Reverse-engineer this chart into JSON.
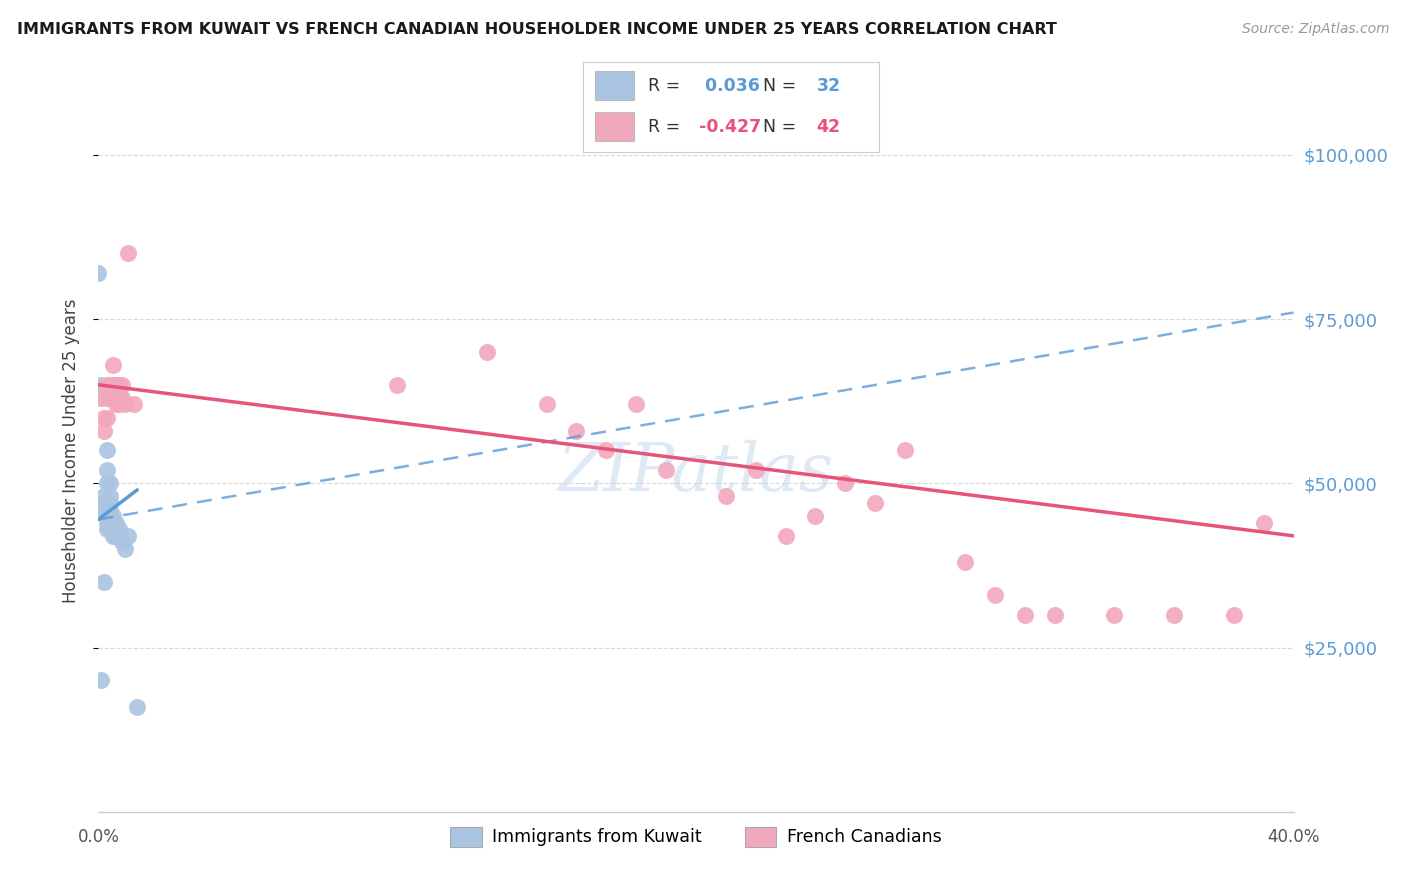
{
  "title": "IMMIGRANTS FROM KUWAIT VS FRENCH CANADIAN HOUSEHOLDER INCOME UNDER 25 YEARS CORRELATION CHART",
  "source": "Source: ZipAtlas.com",
  "ylabel": "Householder Income Under 25 years",
  "xlim": [
    0.0,
    0.4
  ],
  "ylim": [
    0,
    110000
  ],
  "yticks": [
    25000,
    50000,
    75000,
    100000
  ],
  "ytick_labels": [
    "$25,000",
    "$50,000",
    "$75,000",
    "$100,000"
  ],
  "r_kuwait": 0.036,
  "n_kuwait": 32,
  "r_french": -0.427,
  "n_french": 42,
  "legend_label_kuwait": "Immigrants from Kuwait",
  "legend_label_french": "French Canadians",
  "color_kuwait": "#aac4e2",
  "color_french": "#f2a8bc",
  "trendline_color_kuwait": "#5b9bd5",
  "trendline_color_french": "#e8537a",
  "background_color": "#ffffff",
  "grid_color": "#d8d8d8",
  "title_color": "#1a1a1a",
  "source_color": "#999999",
  "axis_label_color": "#444444",
  "tick_label_color_right": "#5b9bd5",
  "watermark_color": "#c5d8ef",
  "kuwait_x": [
    0.0,
    0.001,
    0.001,
    0.002,
    0.002,
    0.002,
    0.002,
    0.003,
    0.003,
    0.003,
    0.003,
    0.003,
    0.003,
    0.004,
    0.004,
    0.004,
    0.004,
    0.004,
    0.004,
    0.005,
    0.005,
    0.005,
    0.005,
    0.006,
    0.006,
    0.006,
    0.007,
    0.007,
    0.008,
    0.009,
    0.01,
    0.013
  ],
  "kuwait_y": [
    82000,
    65000,
    20000,
    48000,
    47000,
    46000,
    35000,
    55000,
    52000,
    50000,
    45000,
    44000,
    43000,
    50000,
    48000,
    47000,
    46000,
    44000,
    43000,
    45000,
    44000,
    43000,
    42000,
    44000,
    43000,
    42000,
    43000,
    42000,
    41000,
    40000,
    42000,
    16000
  ],
  "french_x": [
    0.001,
    0.002,
    0.002,
    0.003,
    0.003,
    0.003,
    0.004,
    0.004,
    0.005,
    0.005,
    0.006,
    0.006,
    0.007,
    0.007,
    0.007,
    0.008,
    0.008,
    0.009,
    0.01,
    0.012,
    0.1,
    0.13,
    0.15,
    0.16,
    0.17,
    0.18,
    0.19,
    0.21,
    0.22,
    0.23,
    0.24,
    0.25,
    0.26,
    0.27,
    0.29,
    0.3,
    0.31,
    0.32,
    0.34,
    0.36,
    0.38,
    0.39
  ],
  "french_y": [
    63000,
    60000,
    58000,
    65000,
    63000,
    60000,
    65000,
    63000,
    68000,
    65000,
    62000,
    65000,
    65000,
    63000,
    62000,
    65000,
    63000,
    62000,
    85000,
    62000,
    65000,
    70000,
    62000,
    58000,
    55000,
    62000,
    52000,
    48000,
    52000,
    42000,
    45000,
    50000,
    47000,
    55000,
    38000,
    33000,
    30000,
    30000,
    30000,
    30000,
    30000,
    44000
  ],
  "trendline_kuwait_x0": 0.0,
  "trendline_kuwait_y0": 44500,
  "trendline_kuwait_x1": 0.013,
  "trendline_kuwait_y1": 49000,
  "trendline_dashed_x0": 0.0,
  "trendline_dashed_y0": 44500,
  "trendline_dashed_x1": 0.4,
  "trendline_dashed_y1": 76000,
  "trendline_french_x0": 0.0,
  "trendline_french_y0": 65000,
  "trendline_french_x1": 0.4,
  "trendline_french_y1": 42000
}
